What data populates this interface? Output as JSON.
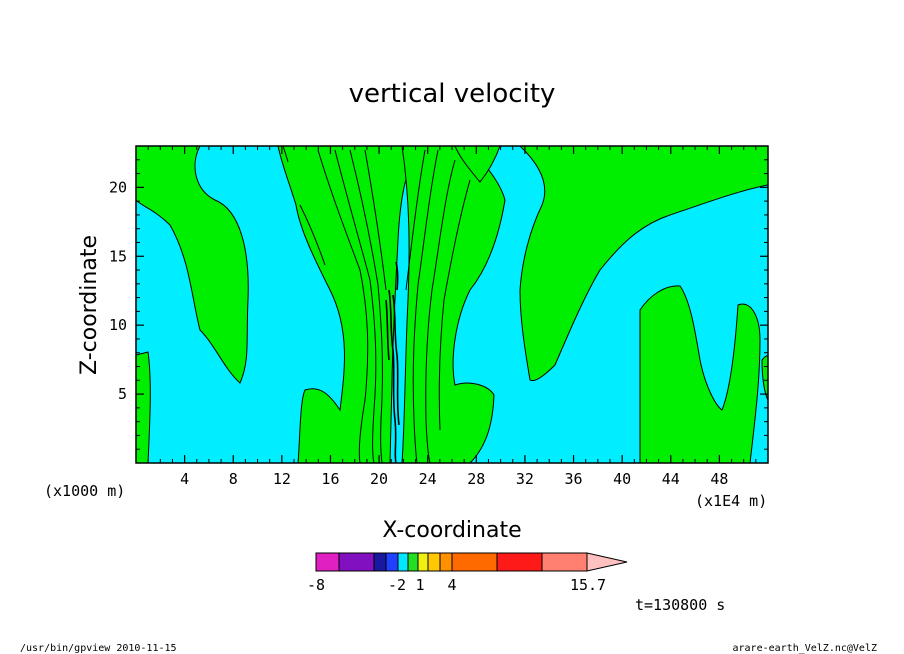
{
  "chart_data": {
    "type": "heatmap",
    "title": "vertical velocity",
    "xlabel": "X-coordinate",
    "ylabel": "Z-coordinate",
    "x_unit_left": "(x1000 m)",
    "x_unit_right": "(x1E4 m)",
    "xlim": [
      0,
      52
    ],
    "ylim": [
      0,
      23
    ],
    "x_ticks": [
      4,
      8,
      12,
      16,
      20,
      24,
      28,
      32,
      36,
      40,
      44,
      48
    ],
    "y_ticks": [
      5,
      10,
      15,
      20
    ],
    "colorbar": {
      "colors": [
        "#e020c0",
        "#8010c0",
        "#1818a0",
        "#2040ff",
        "#00e8ff",
        "#20e020",
        "#f0f010",
        "#ffc800",
        "#ff9000",
        "#ff6a00",
        "#ff1a1a",
        "#ff8070",
        "#ffc0c0"
      ],
      "tick_labels": [
        "-8",
        "-2",
        "1",
        "4",
        "15.7"
      ]
    },
    "field_colors": {
      "up": "#00ee00",
      "down": "#00eeff",
      "contour": "#000000"
    },
    "time_label": "t=130800 s"
  },
  "footer": {
    "left": "/usr/bin/gpview  2010-11-15",
    "right": "arare-earth_VelZ.nc@VelZ"
  }
}
